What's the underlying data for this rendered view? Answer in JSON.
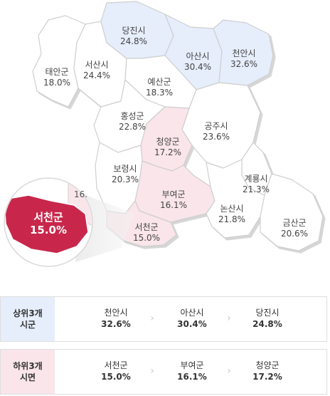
{
  "colors": {
    "top": "#e6edfb",
    "bottom": "#f9e5ea",
    "highlight": "#c8274b",
    "default": "#ffffff",
    "border": "#cfcfcf"
  },
  "regions": [
    {
      "id": "dangjin",
      "name": "당진시",
      "value": "24.8%",
      "group": "top"
    },
    {
      "id": "asan",
      "name": "아산시",
      "value": "30.4%",
      "group": "top"
    },
    {
      "id": "cheonan",
      "name": "천안시",
      "value": "32.6%",
      "group": "top"
    },
    {
      "id": "taean",
      "name": "태안군",
      "value": "18.0%",
      "group": "none"
    },
    {
      "id": "seosan",
      "name": "서산시",
      "value": "24.4%",
      "group": "none"
    },
    {
      "id": "yesan",
      "name": "예산군",
      "value": "18.3%",
      "group": "none"
    },
    {
      "id": "hongseong",
      "name": "홍성군",
      "value": "22.8%",
      "group": "none"
    },
    {
      "id": "gongju",
      "name": "공주시",
      "value": "23.6%",
      "group": "none"
    },
    {
      "id": "cheongyang",
      "name": "청양군",
      "value": "17.2%",
      "group": "bottom"
    },
    {
      "id": "boryeong",
      "name": "보령시",
      "value": "20.3%",
      "group": "none"
    },
    {
      "id": "buyeo",
      "name": "부여군",
      "value": "16.1%",
      "group": "bottom"
    },
    {
      "id": "seocheon",
      "name": "서천군",
      "value": "15.0%",
      "group": "bottom"
    },
    {
      "id": "gyeryong",
      "name": "계룡시",
      "value": "21.3%",
      "group": "none"
    },
    {
      "id": "nonsan",
      "name": "논산시",
      "value": "21.8%",
      "group": "none"
    },
    {
      "id": "geumsan",
      "name": "금산군",
      "value": "20.6%",
      "group": "none"
    }
  ],
  "zoom": {
    "name": "서천군",
    "value": "15.0%",
    "peek_text": "16."
  },
  "summary": {
    "top": {
      "title_line1": "상위3개",
      "title_line2": "시군",
      "items": [
        {
          "name": "천안시",
          "value": "32.6%"
        },
        {
          "name": "아산시",
          "value": "30.4%"
        },
        {
          "name": "당진시",
          "value": "24.8%"
        }
      ]
    },
    "bottom": {
      "title_line1": "하위3개",
      "title_line2": "시면",
      "items": [
        {
          "name": "서천군",
          "value": "15.0%"
        },
        {
          "name": "부여군",
          "value": "16.1%"
        },
        {
          "name": "청양군",
          "value": "17.2%"
        }
      ]
    }
  }
}
